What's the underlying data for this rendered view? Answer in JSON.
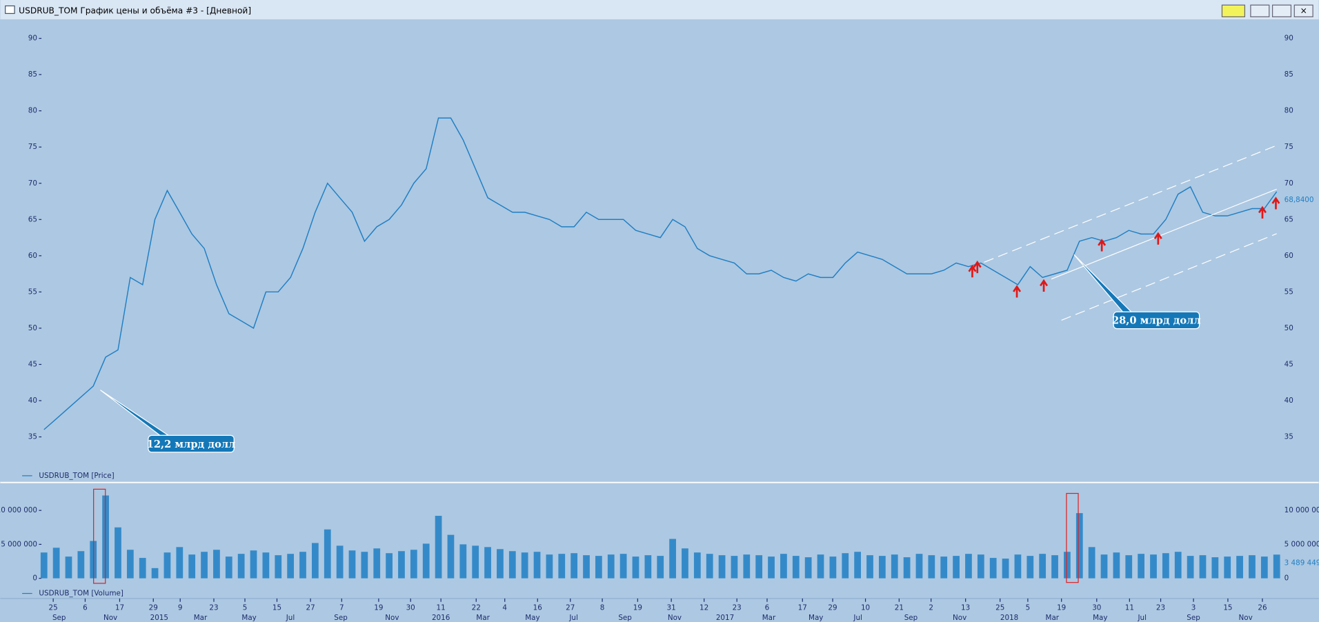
{
  "window": {
    "title": "USDRUB_TOM График цены и объёма #3 - [Дневной]"
  },
  "annotations": [
    "12,2 млрд долл",
    "28,0 млрд долл"
  ],
  "chart_data": [
    {
      "type": "line",
      "series": [
        {
          "name": "USDRUB_TOM [Price]",
          "color": "#1f7fc4",
          "x": [
            0,
            1,
            2,
            3,
            4,
            5,
            6,
            7,
            8,
            9,
            10,
            11,
            12,
            13,
            14,
            15,
            16,
            17,
            18,
            19,
            20,
            21,
            22,
            23,
            24,
            25,
            26,
            27,
            28,
            29,
            30,
            31,
            32,
            33,
            34,
            35,
            36,
            37,
            38,
            39,
            40,
            41,
            42,
            43,
            44,
            45,
            46,
            47,
            48,
            49,
            50,
            51,
            52,
            53,
            54,
            55,
            56,
            57,
            58,
            59,
            60,
            61,
            62,
            63,
            64,
            65,
            66,
            67,
            68,
            69,
            70,
            71,
            72,
            73,
            74,
            75,
            76,
            77,
            78,
            79,
            80,
            81,
            82,
            83,
            84,
            85,
            86,
            87,
            88,
            89,
            90,
            91,
            92,
            93,
            94,
            95,
            96,
            97,
            98,
            99,
            100
          ],
          "values": [
            36,
            37.5,
            39,
            40.5,
            42,
            46,
            47,
            57,
            56,
            65,
            69,
            66,
            63,
            61,
            56,
            52,
            51,
            50,
            55,
            55,
            57,
            61,
            66,
            70,
            68,
            66,
            62,
            64,
            65,
            67,
            70,
            72,
            79,
            79,
            76,
            72,
            68,
            67,
            66,
            66,
            65.5,
            65,
            64,
            64,
            66,
            65,
            65,
            65,
            63.5,
            63,
            62.5,
            65,
            64,
            61,
            60,
            59.5,
            59,
            57.5,
            57.5,
            58,
            57,
            56.5,
            57.5,
            57,
            57,
            59,
            60.5,
            60,
            59.5,
            58.5,
            57.5,
            57.5,
            57.5,
            58,
            59,
            58.5,
            59,
            58,
            57,
            56,
            58.5,
            57,
            57.5,
            58,
            62,
            62.5,
            62,
            62.5,
            63.5,
            63,
            63,
            65,
            68.5,
            69.5,
            66,
            65.5,
            65.5,
            66,
            66.5,
            66.5,
            68.84
          ]
        }
      ],
      "last_label": {
        "value": 68.84,
        "label": "68,8400"
      },
      "xlim": [
        0,
        100
      ],
      "ylim": [
        33,
        91
      ],
      "yticks": [
        35,
        40,
        45,
        50,
        55,
        60,
        65,
        70,
        75,
        80,
        85,
        90
      ]
    },
    {
      "type": "bar",
      "series": [
        {
          "name": "USDRUB_TOM [Volume]",
          "color": "#1f7fc4",
          "x": [
            0,
            1,
            2,
            3,
            4,
            5,
            6,
            7,
            8,
            9,
            10,
            11,
            12,
            13,
            14,
            15,
            16,
            17,
            18,
            19,
            20,
            21,
            22,
            23,
            24,
            25,
            26,
            27,
            28,
            29,
            30,
            31,
            32,
            33,
            34,
            35,
            36,
            37,
            38,
            39,
            40,
            41,
            42,
            43,
            44,
            45,
            46,
            47,
            48,
            49,
            50,
            51,
            52,
            53,
            54,
            55,
            56,
            57,
            58,
            59,
            60,
            61,
            62,
            63,
            64,
            65,
            66,
            67,
            68,
            69,
            70,
            71,
            72,
            73,
            74,
            75,
            76,
            77,
            78,
            79,
            80,
            81,
            82,
            83,
            84,
            85,
            86,
            87,
            88,
            89,
            90,
            91,
            92,
            93,
            94,
            95,
            96,
            97,
            98,
            99,
            100
          ],
          "values": [
            3800000,
            4500000,
            3200000,
            4000000,
            5500000,
            12200000,
            7500000,
            4200000,
            3000000,
            1500000,
            3800000,
            4600000,
            3500000,
            3900000,
            4200000,
            3200000,
            3600000,
            4100000,
            3800000,
            3400000,
            3600000,
            3900000,
            5200000,
            7200000,
            4800000,
            4100000,
            3900000,
            4400000,
            3700000,
            4000000,
            4200000,
            5100000,
            9200000,
            6400000,
            5000000,
            4800000,
            4600000,
            4300000,
            4000000,
            3800000,
            3900000,
            3500000,
            3600000,
            3700000,
            3400000,
            3300000,
            3500000,
            3600000,
            3200000,
            3400000,
            3300000,
            5800000,
            4400000,
            3800000,
            3600000,
            3400000,
            3300000,
            3500000,
            3400000,
            3200000,
            3600000,
            3300000,
            3100000,
            3500000,
            3200000,
            3700000,
            3900000,
            3400000,
            3300000,
            3500000,
            3100000,
            3600000,
            3400000,
            3200000,
            3300000,
            3600000,
            3500000,
            3000000,
            2900000,
            3500000,
            3300000,
            3600000,
            3400000,
            3900000,
            9600000,
            4600000,
            3500000,
            3800000,
            3400000,
            3600000,
            3500000,
            3700000,
            3900000,
            3300000,
            3400000,
            3100000,
            3200000,
            3300000,
            3400000,
            3200000,
            3489449
          ]
        }
      ],
      "last_label": {
        "value": 3489449,
        "label": "3 489 449"
      },
      "xlim": [
        0,
        100
      ],
      "ylim": [
        0,
        13000000
      ],
      "yticks": [
        {
          "value": 0,
          "label": "0"
        },
        {
          "value": 5000000,
          "label": "5 000 000"
        },
        {
          "value": 10000000,
          "label": "10 000 000"
        }
      ],
      "xticks": [
        {
          "value": 0.75,
          "label": "25"
        },
        {
          "value": 3.34,
          "label": "6"
        },
        {
          "value": 6.14,
          "label": "17"
        },
        {
          "value": 8.87,
          "label": "29"
        },
        {
          "value": 11.05,
          "label": "9"
        },
        {
          "value": 13.78,
          "label": "23"
        },
        {
          "value": 16.3,
          "label": "5"
        },
        {
          "value": 18.9,
          "label": "15"
        },
        {
          "value": 21.62,
          "label": "27"
        },
        {
          "value": 24.15,
          "label": "7"
        },
        {
          "value": 27.15,
          "label": "19"
        },
        {
          "value": 29.74,
          "label": "30"
        },
        {
          "value": 32.2,
          "label": "11"
        },
        {
          "value": 35.06,
          "label": "22"
        },
        {
          "value": 37.38,
          "label": "4"
        },
        {
          "value": 40.04,
          "label": "16"
        },
        {
          "value": 42.7,
          "label": "27"
        },
        {
          "value": 45.29,
          "label": "8"
        },
        {
          "value": 48.16,
          "label": "19"
        },
        {
          "value": 50.89,
          "label": "31"
        },
        {
          "value": 53.55,
          "label": "12"
        },
        {
          "value": 56.21,
          "label": "23"
        },
        {
          "value": 58.66,
          "label": "6"
        },
        {
          "value": 61.53,
          "label": "17"
        },
        {
          "value": 63.98,
          "label": "29"
        },
        {
          "value": 66.64,
          "label": "10"
        },
        {
          "value": 69.37,
          "label": "21"
        },
        {
          "value": 71.96,
          "label": "2"
        },
        {
          "value": 74.76,
          "label": "13"
        },
        {
          "value": 77.56,
          "label": "25"
        },
        {
          "value": 79.81,
          "label": "5"
        },
        {
          "value": 82.54,
          "label": "19"
        },
        {
          "value": 85.4,
          "label": "30"
        },
        {
          "value": 88.06,
          "label": "11"
        },
        {
          "value": 90.59,
          "label": "23"
        },
        {
          "value": 93.25,
          "label": "3"
        },
        {
          "value": 96.04,
          "label": "15"
        },
        {
          "value": 98.84,
          "label": "26"
        }
      ],
      "xticks_period": [
        {
          "value": 1.23,
          "label": "Sep"
        },
        {
          "value": 5.39,
          "label": "Nov"
        },
        {
          "value": 9.35,
          "label": "2015"
        },
        {
          "value": 12.69,
          "label": "Mar"
        },
        {
          "value": 16.64,
          "label": "May"
        },
        {
          "value": 19.99,
          "label": "Jul"
        },
        {
          "value": 24.08,
          "label": "Sep"
        },
        {
          "value": 28.24,
          "label": "Nov"
        },
        {
          "value": 32.2,
          "label": "2016"
        },
        {
          "value": 35.61,
          "label": "Mar"
        },
        {
          "value": 39.63,
          "label": "May"
        },
        {
          "value": 42.97,
          "label": "Jul"
        },
        {
          "value": 47.14,
          "label": "Sep"
        },
        {
          "value": 51.16,
          "label": "Nov"
        },
        {
          "value": 55.25,
          "label": "2017"
        },
        {
          "value": 58.8,
          "label": "Mar"
        },
        {
          "value": 62.62,
          "label": "May"
        },
        {
          "value": 66.03,
          "label": "Jul"
        },
        {
          "value": 70.33,
          "label": "Sep"
        },
        {
          "value": 74.28,
          "label": "Nov"
        },
        {
          "value": 78.31,
          "label": "2018"
        },
        {
          "value": 81.79,
          "label": "Mar"
        },
        {
          "value": 85.68,
          "label": "May"
        },
        {
          "value": 89.09,
          "label": "Jul"
        },
        {
          "value": 93.25,
          "label": "Sep"
        },
        {
          "value": 97.48,
          "label": "Nov"
        }
      ]
    }
  ]
}
